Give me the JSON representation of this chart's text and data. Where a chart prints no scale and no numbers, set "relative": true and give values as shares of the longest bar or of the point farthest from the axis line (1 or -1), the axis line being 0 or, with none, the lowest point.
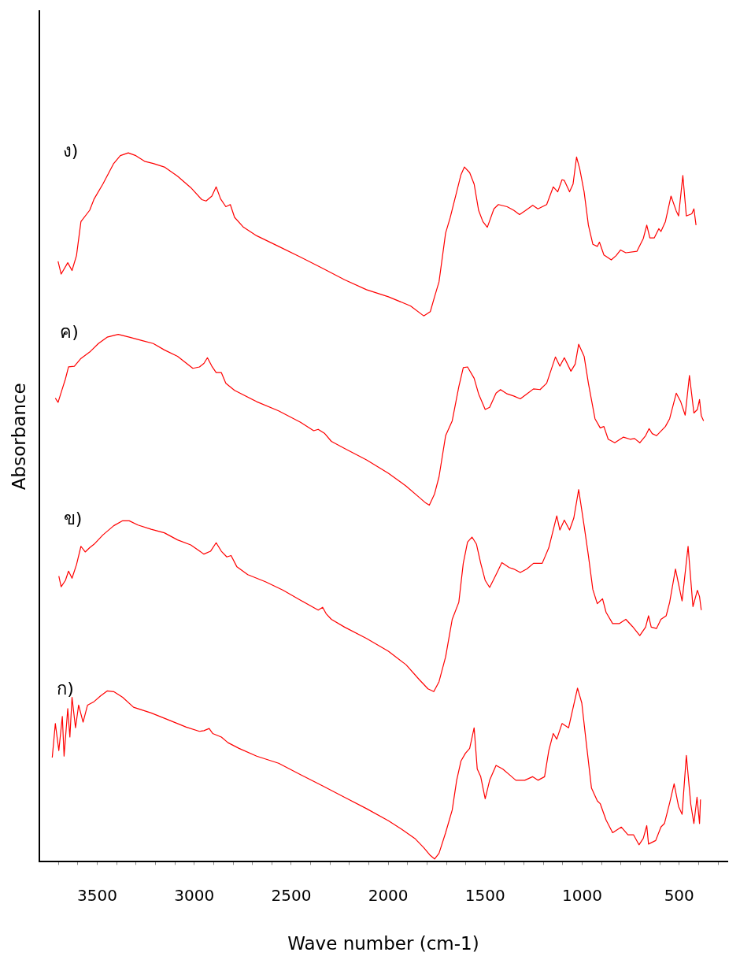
{
  "chart_data": {
    "type": "line",
    "xlabel": "Wave number (cm-1)",
    "ylabel": "Absorbance",
    "relative": true,
    "grid": false,
    "legend": false,
    "marker": "none",
    "line_style": "solid",
    "xlim": [
      3800,
      250
    ],
    "xticks": [
      {
        "value": 3700,
        "label": null
      },
      {
        "value": 3600,
        "label": null
      },
      3500,
      {
        "value": 3400,
        "label": null
      },
      {
        "value": 3300,
        "label": null
      },
      {
        "value": 3200,
        "label": null
      },
      {
        "value": 3100,
        "label": null
      },
      3000,
      {
        "value": 2900,
        "label": null
      },
      {
        "value": 2800,
        "label": null
      },
      {
        "value": 2700,
        "label": null
      },
      {
        "value": 2600,
        "label": null
      },
      2500,
      {
        "value": 2400,
        "label": null
      },
      {
        "value": 2300,
        "label": null
      },
      {
        "value": 2200,
        "label": null
      },
      {
        "value": 2100,
        "label": null
      },
      2000,
      {
        "value": 1900,
        "label": null
      },
      {
        "value": 1800,
        "label": null
      },
      {
        "value": 1700,
        "label": null
      },
      {
        "value": 1600,
        "label": null
      },
      1500,
      {
        "value": 1400,
        "label": null
      },
      {
        "value": 1300,
        "label": null
      },
      {
        "value": 1200,
        "label": null
      },
      {
        "value": 1100,
        "label": null
      },
      1000,
      {
        "value": 900,
        "label": null
      },
      {
        "value": 800,
        "label": null
      },
      {
        "value": 700,
        "label": null
      },
      {
        "value": 600,
        "label": null
      },
      500,
      {
        "value": 400,
        "label": null
      },
      {
        "value": 300,
        "label": null
      }
    ],
    "annotations": [
      "ง)",
      "ค)",
      "ข)",
      "ก)"
    ],
    "series": [
      {
        "color": "#ff0000",
        "x": [
          3702,
          3686,
          3652,
          3630,
          3607,
          3584,
          3539,
          3516,
          3471,
          3415,
          3381,
          3340,
          3301,
          3256,
          3211,
          3154,
          3086,
          3018,
          2961,
          2939,
          2909,
          2887,
          2864,
          2837,
          2814,
          2792,
          2746,
          2678,
          2565,
          2452,
          2338,
          2225,
          2112,
          1999,
          1885,
          1817,
          1783,
          1761,
          1738,
          1704,
          1681,
          1647,
          1625,
          1607,
          1580,
          1557,
          1534,
          1512,
          1489,
          1455,
          1432,
          1387,
          1353,
          1323,
          1296,
          1255,
          1228,
          1183,
          1149,
          1126,
          1104,
          1092,
          1065,
          1047,
          1029,
          1013,
          990,
          968,
          945,
          922,
          911,
          888,
          850,
          825,
          802,
          775,
          718,
          685,
          667,
          651,
          628,
          605,
          594,
          571,
          542,
          515,
          503,
          481,
          463,
          435,
          424,
          413
        ],
        "values": [
          0.847,
          0.829,
          0.845,
          0.834,
          0.855,
          0.903,
          0.919,
          0.935,
          0.956,
          0.985,
          0.996,
          1.0,
          0.996,
          0.988,
          0.985,
          0.98,
          0.967,
          0.951,
          0.934,
          0.932,
          0.939,
          0.952,
          0.935,
          0.924,
          0.927,
          0.909,
          0.895,
          0.883,
          0.868,
          0.853,
          0.837,
          0.821,
          0.807,
          0.797,
          0.784,
          0.77,
          0.776,
          0.797,
          0.818,
          0.887,
          0.908,
          0.945,
          0.969,
          0.98,
          0.972,
          0.956,
          0.919,
          0.903,
          0.895,
          0.921,
          0.927,
          0.924,
          0.919,
          0.913,
          0.918,
          0.926,
          0.921,
          0.927,
          0.952,
          0.945,
          0.962,
          0.961,
          0.945,
          0.956,
          0.994,
          0.978,
          0.945,
          0.898,
          0.871,
          0.868,
          0.874,
          0.856,
          0.849,
          0.855,
          0.863,
          0.859,
          0.861,
          0.879,
          0.898,
          0.88,
          0.88,
          0.893,
          0.889,
          0.903,
          0.939,
          0.918,
          0.911,
          0.968,
          0.911,
          0.914,
          0.921,
          0.898
        ]
      },
      {
        "color": "#ff0000",
        "x": [
          3716,
          3702,
          3686,
          3664,
          3648,
          3618,
          3584,
          3539,
          3494,
          3449,
          3392,
          3335,
          3267,
          3211,
          3154,
          3086,
          3007,
          2973,
          2950,
          2932,
          2909,
          2887,
          2860,
          2837,
          2792,
          2678,
          2565,
          2452,
          2384,
          2361,
          2327,
          2293,
          2225,
          2112,
          1999,
          1908,
          1840,
          1806,
          1788,
          1761,
          1738,
          1704,
          1670,
          1636,
          1613,
          1591,
          1557,
          1534,
          1500,
          1477,
          1444,
          1421,
          1387,
          1353,
          1319,
          1285,
          1251,
          1217,
          1183,
          1138,
          1115,
          1092,
          1058,
          1036,
          1018,
          990,
          968,
          934,
          907,
          888,
          866,
          832,
          787,
          753,
          730,
          703,
          673,
          655,
          639,
          617,
          571,
          549,
          515,
          492,
          469,
          447,
          424,
          406,
          395,
          386,
          374
        ],
        "values": [
          0.654,
          0.648,
          0.662,
          0.681,
          0.698,
          0.699,
          0.71,
          0.719,
          0.731,
          0.74,
          0.744,
          0.74,
          0.735,
          0.731,
          0.722,
          0.713,
          0.696,
          0.698,
          0.703,
          0.711,
          0.699,
          0.69,
          0.69,
          0.675,
          0.665,
          0.649,
          0.636,
          0.62,
          0.608,
          0.61,
          0.604,
          0.593,
          0.583,
          0.567,
          0.548,
          0.53,
          0.514,
          0.506,
          0.503,
          0.519,
          0.543,
          0.601,
          0.622,
          0.67,
          0.697,
          0.698,
          0.682,
          0.66,
          0.638,
          0.641,
          0.661,
          0.666,
          0.66,
          0.657,
          0.653,
          0.66,
          0.667,
          0.666,
          0.675,
          0.712,
          0.699,
          0.711,
          0.692,
          0.702,
          0.73,
          0.713,
          0.675,
          0.625,
          0.612,
          0.614,
          0.596,
          0.591,
          0.599,
          0.596,
          0.597,
          0.591,
          0.601,
          0.611,
          0.604,
          0.601,
          0.614,
          0.625,
          0.661,
          0.649,
          0.63,
          0.686,
          0.633,
          0.638,
          0.652,
          0.629,
          0.622
        ]
      },
      {
        "color": "#ff0000",
        "x": [
          3698,
          3686,
          3664,
          3648,
          3630,
          3607,
          3584,
          3562,
          3539,
          3516,
          3471,
          3415,
          3369,
          3335,
          3290,
          3222,
          3154,
          3086,
          3018,
          2950,
          2916,
          2887,
          2860,
          2832,
          2810,
          2780,
          2724,
          2633,
          2542,
          2452,
          2361,
          2338,
          2320,
          2293,
          2225,
          2112,
          1999,
          1908,
          1840,
          1795,
          1765,
          1738,
          1704,
          1670,
          1636,
          1613,
          1591,
          1568,
          1545,
          1523,
          1500,
          1477,
          1444,
          1414,
          1376,
          1353,
          1319,
          1285,
          1251,
          1206,
          1172,
          1131,
          1115,
          1092,
          1065,
          1043,
          1018,
          990,
          968,
          945,
          922,
          895,
          877,
          843,
          809,
          775,
          741,
          703,
          673,
          658,
          644,
          617,
          594,
          567,
          549,
          519,
          485,
          454,
          429,
          406,
          395,
          386
        ],
        "values": [
          0.403,
          0.388,
          0.397,
          0.41,
          0.4,
          0.419,
          0.445,
          0.437,
          0.443,
          0.448,
          0.461,
          0.474,
          0.481,
          0.481,
          0.475,
          0.469,
          0.464,
          0.454,
          0.447,
          0.434,
          0.438,
          0.45,
          0.438,
          0.43,
          0.432,
          0.416,
          0.405,
          0.395,
          0.383,
          0.369,
          0.355,
          0.359,
          0.35,
          0.342,
          0.331,
          0.315,
          0.297,
          0.278,
          0.257,
          0.244,
          0.24,
          0.254,
          0.289,
          0.342,
          0.366,
          0.421,
          0.451,
          0.458,
          0.448,
          0.421,
          0.397,
          0.387,
          0.405,
          0.422,
          0.415,
          0.413,
          0.408,
          0.413,
          0.421,
          0.421,
          0.443,
          0.488,
          0.468,
          0.482,
          0.468,
          0.485,
          0.525,
          0.474,
          0.432,
          0.384,
          0.364,
          0.371,
          0.352,
          0.336,
          0.336,
          0.342,
          0.332,
          0.319,
          0.331,
          0.347,
          0.331,
          0.329,
          0.342,
          0.347,
          0.366,
          0.413,
          0.368,
          0.445,
          0.36,
          0.383,
          0.374,
          0.355
        ]
      },
      {
        "color": "#ff0000",
        "x": [
          3732,
          3716,
          3698,
          3680,
          3671,
          3652,
          3641,
          3630,
          3612,
          3596,
          3573,
          3550,
          3516,
          3483,
          3449,
          3415,
          3369,
          3313,
          3222,
          3131,
          3041,
          2973,
          2950,
          2923,
          2905,
          2860,
          2826,
          2769,
          2678,
          2565,
          2452,
          2338,
          2225,
          2112,
          1999,
          1931,
          1863,
          1817,
          1783,
          1761,
          1738,
          1704,
          1670,
          1647,
          1625,
          1602,
          1580,
          1557,
          1541,
          1523,
          1500,
          1477,
          1444,
          1410,
          1376,
          1342,
          1296,
          1256,
          1228,
          1194,
          1172,
          1149,
          1131,
          1104,
          1070,
          1024,
          1002,
          979,
          952,
          922,
          907,
          877,
          843,
          798,
          764,
          735,
          707,
          685,
          667,
          658,
          621,
          594,
          576,
          549,
          526,
          503,
          485,
          463,
          440,
          424,
          408,
          395,
          390
        ],
        "values": [
          0.147,
          0.195,
          0.157,
          0.205,
          0.149,
          0.216,
          0.176,
          0.232,
          0.189,
          0.221,
          0.197,
          0.221,
          0.226,
          0.234,
          0.241,
          0.24,
          0.232,
          0.218,
          0.21,
          0.2,
          0.19,
          0.184,
          0.185,
          0.188,
          0.181,
          0.176,
          0.168,
          0.16,
          0.149,
          0.139,
          0.123,
          0.107,
          0.091,
          0.075,
          0.058,
          0.046,
          0.033,
          0.02,
          0.009,
          0.004,
          0.012,
          0.041,
          0.073,
          0.115,
          0.142,
          0.153,
          0.16,
          0.189,
          0.131,
          0.12,
          0.089,
          0.115,
          0.136,
          0.131,
          0.123,
          0.115,
          0.115,
          0.12,
          0.115,
          0.12,
          0.157,
          0.181,
          0.173,
          0.195,
          0.189,
          0.245,
          0.224,
          0.168,
          0.104,
          0.086,
          0.082,
          0.059,
          0.041,
          0.049,
          0.038,
          0.038,
          0.024,
          0.033,
          0.051,
          0.025,
          0.03,
          0.049,
          0.054,
          0.083,
          0.11,
          0.078,
          0.067,
          0.15,
          0.081,
          0.054,
          0.091,
          0.054,
          0.088
        ]
      }
    ]
  }
}
